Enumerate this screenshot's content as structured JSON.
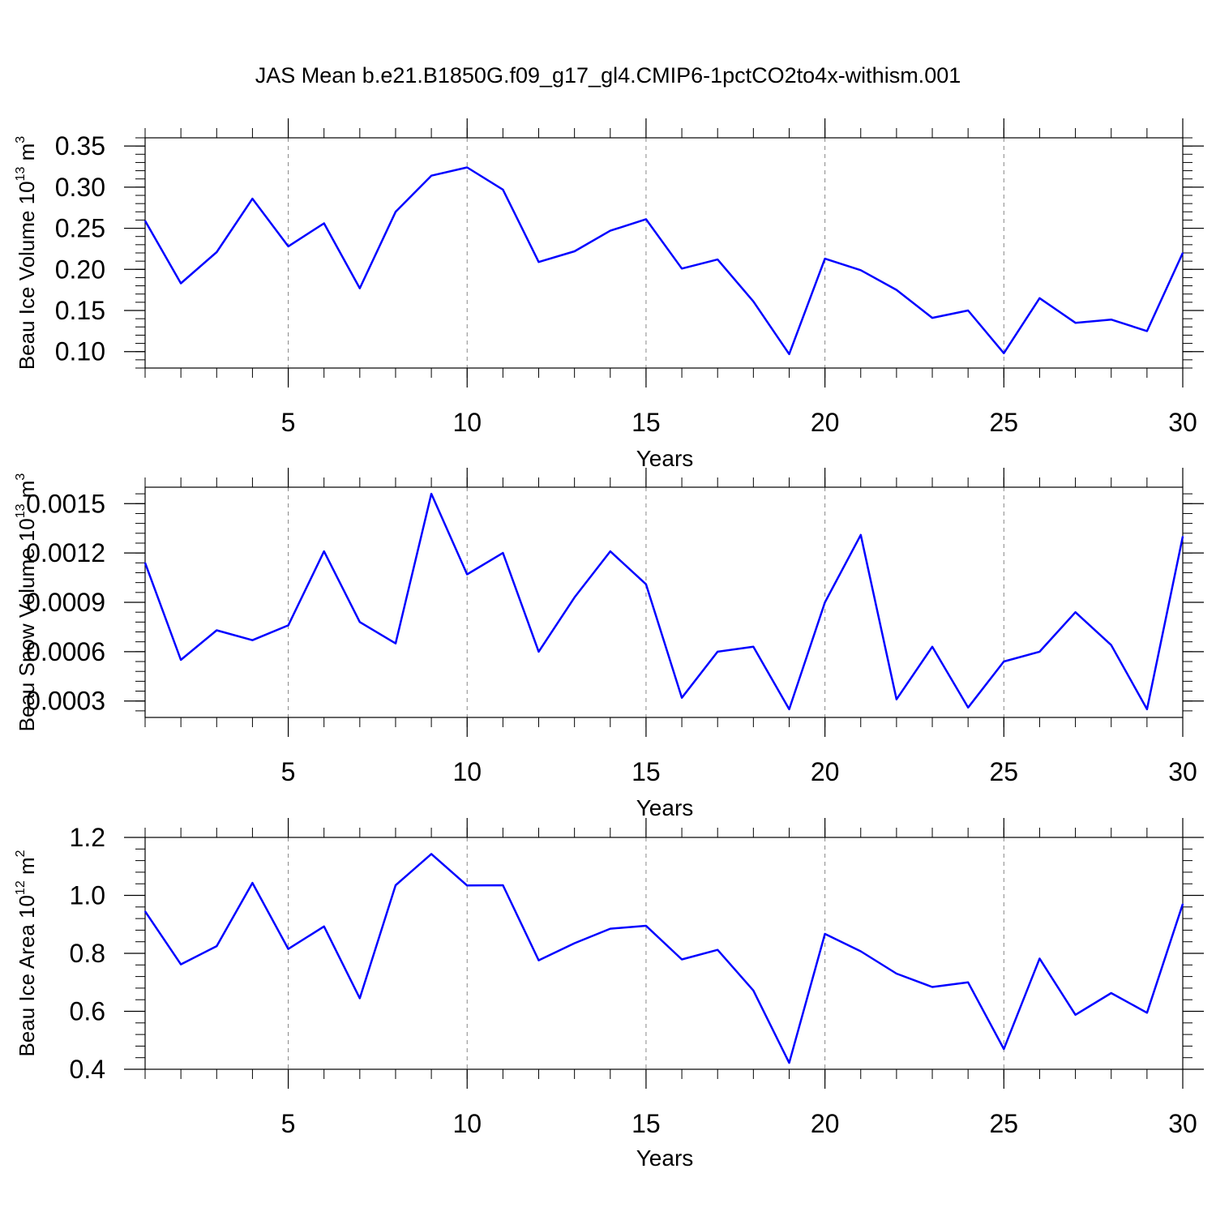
{
  "title": "JAS Mean b.e21.B1850G.f09_g17_gl4.CMIP6-1pctCO2to4x-withism.001",
  "colors": {
    "line": "#0000ff",
    "axis": "#000000",
    "grid": "#888888"
  },
  "chart_data": [
    {
      "type": "line",
      "ylabel": "Beau Ice Volume 10",
      "ylabel_sup": "13",
      "ylabel_unit": "m",
      "ylabel_unit_sup": "3",
      "xlabel": "Years",
      "xlim": [
        1,
        30
      ],
      "ylim": [
        0.08,
        0.36
      ],
      "yticks": [
        0.1,
        0.15,
        0.2,
        0.25,
        0.3,
        0.35
      ],
      "ytick_labels": [
        "0.10",
        "0.15",
        "0.20",
        "0.25",
        "0.30",
        "0.35"
      ],
      "xticks": [
        5,
        10,
        15,
        20,
        25,
        30
      ],
      "xtick_labels": [
        "5",
        "10",
        "15",
        "20",
        "25",
        "30"
      ],
      "x": [
        1,
        2,
        3,
        4,
        5,
        6,
        7,
        8,
        9,
        10,
        11,
        12,
        13,
        14,
        15,
        16,
        17,
        18,
        19,
        20,
        21,
        22,
        23,
        24,
        25,
        26,
        27,
        28,
        29,
        30
      ],
      "y": [
        0.259,
        0.183,
        0.221,
        0.286,
        0.228,
        0.256,
        0.177,
        0.27,
        0.314,
        0.324,
        0.297,
        0.209,
        0.222,
        0.247,
        0.261,
        0.201,
        0.212,
        0.161,
        0.097,
        0.213,
        0.199,
        0.175,
        0.141,
        0.15,
        0.098,
        0.165,
        0.135,
        0.139,
        0.125,
        0.22
      ]
    },
    {
      "type": "line",
      "ylabel": "Beau Snow Volume 10",
      "ylabel_sup": "13",
      "ylabel_unit": "m",
      "ylabel_unit_sup": "3",
      "xlabel": "Years",
      "xlim": [
        1,
        30
      ],
      "ylim": [
        0.0002,
        0.0016
      ],
      "yticks": [
        0.0003,
        0.0006,
        0.0009,
        0.0012,
        0.0015
      ],
      "ytick_labels": [
        "0.0003",
        "0.0006",
        "0.0009",
        "0.0012",
        "0.0015"
      ],
      "xticks": [
        5,
        10,
        15,
        20,
        25,
        30
      ],
      "xtick_labels": [
        "5",
        "10",
        "15",
        "20",
        "25",
        "30"
      ],
      "x": [
        1,
        2,
        3,
        4,
        5,
        6,
        7,
        8,
        9,
        10,
        11,
        12,
        13,
        14,
        15,
        16,
        17,
        18,
        19,
        20,
        21,
        22,
        23,
        24,
        25,
        26,
        27,
        28,
        29,
        30
      ],
      "y": [
        0.00114,
        0.00055,
        0.00073,
        0.00067,
        0.00076,
        0.00121,
        0.00078,
        0.00065,
        0.00156,
        0.00107,
        0.0012,
        0.0006,
        0.00093,
        0.00121,
        0.00101,
        0.00032,
        0.0006,
        0.00063,
        0.00025,
        0.0009,
        0.00131,
        0.00031,
        0.00063,
        0.00026,
        0.00054,
        0.0006,
        0.00084,
        0.00064,
        0.00025,
        0.0013
      ]
    },
    {
      "type": "line",
      "ylabel": "Beau Ice Area 10",
      "ylabel_sup": "12",
      "ylabel_unit": "m",
      "ylabel_unit_sup": "2",
      "xlabel": "Years",
      "xlim": [
        1,
        30
      ],
      "ylim": [
        0.4,
        1.2
      ],
      "yticks": [
        0.4,
        0.6,
        0.8,
        1.0,
        1.2
      ],
      "ytick_labels": [
        "0.4",
        "0.6",
        "0.8",
        "1.0",
        "1.2"
      ],
      "xticks": [
        5,
        10,
        15,
        20,
        25,
        30
      ],
      "xtick_labels": [
        "5",
        "10",
        "15",
        "20",
        "25",
        "30"
      ],
      "x": [
        1,
        2,
        3,
        4,
        5,
        6,
        7,
        8,
        9,
        10,
        11,
        12,
        13,
        14,
        15,
        16,
        17,
        18,
        19,
        20,
        21,
        22,
        23,
        24,
        25,
        26,
        27,
        28,
        29,
        30
      ],
      "y": [
        0.945,
        0.762,
        0.825,
        1.043,
        0.815,
        0.893,
        0.645,
        1.035,
        1.143,
        1.034,
        1.035,
        0.776,
        0.835,
        0.885,
        0.895,
        0.779,
        0.812,
        0.672,
        0.422,
        0.867,
        0.807,
        0.73,
        0.684,
        0.7,
        0.47,
        0.782,
        0.588,
        0.663,
        0.595,
        0.97
      ]
    }
  ]
}
